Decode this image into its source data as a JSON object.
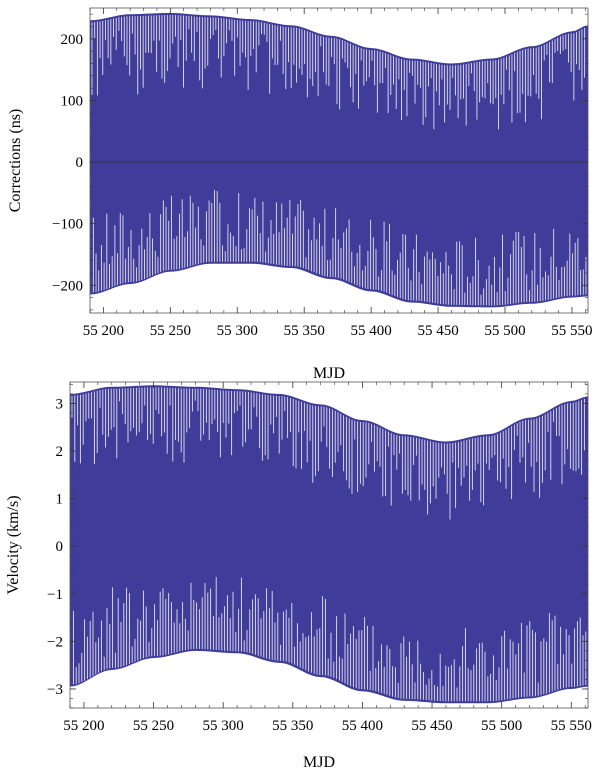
{
  "chart_data": [
    {
      "type": "line",
      "xlabel": "MJD",
      "ylabel": "Corrections (ns)",
      "xlim": [
        55190,
        55562
      ],
      "ylim": [
        -245,
        250
      ],
      "xticks": [
        55200,
        55250,
        55300,
        55350,
        55400,
        55450,
        55500,
        55550
      ],
      "xtick_labels": [
        "55 200",
        "55 250",
        "55 300",
        "55 350",
        "55 400",
        "55 450",
        "55 500",
        "55 550"
      ],
      "yticks": [
        -200,
        -100,
        0,
        100,
        200
      ],
      "ytick_labels": [
        "−200",
        "−100",
        "0",
        "100",
        "200"
      ],
      "zero_line": true,
      "color": "#3f3d99",
      "series": [
        {
          "x": [
            55190,
            55220,
            55250,
            55280,
            55310,
            55340,
            55370,
            55400,
            55430,
            55460,
            55490,
            55520,
            55550,
            55562
          ],
          "upper": [
            230,
            240,
            242,
            238,
            232,
            222,
            205,
            185,
            168,
            160,
            168,
            188,
            212,
            222
          ],
          "lower": [
            -215,
            -198,
            -178,
            -165,
            -165,
            -172,
            -190,
            -210,
            -228,
            -235,
            -236,
            -230,
            -220,
            -218
          ]
        }
      ]
    },
    {
      "type": "line",
      "xlabel": "MJD",
      "ylabel": "Velocity (km/s)",
      "xlim": [
        55190,
        55562
      ],
      "ylim": [
        -3.4,
        3.45
      ],
      "xticks": [
        55200,
        55250,
        55300,
        55350,
        55400,
        55450,
        55500,
        55550
      ],
      "xtick_labels": [
        "55 200",
        "55 250",
        "55 300",
        "55 350",
        "55 400",
        "55 450",
        "55 500",
        "55 550"
      ],
      "yticks": [
        -3,
        -2,
        -1,
        0,
        1,
        2,
        3
      ],
      "ytick_labels": [
        "−3",
        "−2",
        "−1",
        "0",
        "1",
        "2",
        "3"
      ],
      "zero_line": false,
      "color": "#3f3d99",
      "series": [
        {
          "x": [
            55190,
            55220,
            55250,
            55280,
            55310,
            55340,
            55370,
            55400,
            55430,
            55460,
            55490,
            55520,
            55550,
            55562
          ],
          "upper": [
            3.2,
            3.35,
            3.38,
            3.35,
            3.3,
            3.2,
            2.98,
            2.65,
            2.35,
            2.2,
            2.35,
            2.7,
            3.05,
            3.15
          ],
          "lower": [
            -2.95,
            -2.6,
            -2.35,
            -2.2,
            -2.25,
            -2.45,
            -2.75,
            -3.05,
            -3.25,
            -3.3,
            -3.3,
            -3.2,
            -3.0,
            -2.95
          ]
        }
      ]
    }
  ]
}
